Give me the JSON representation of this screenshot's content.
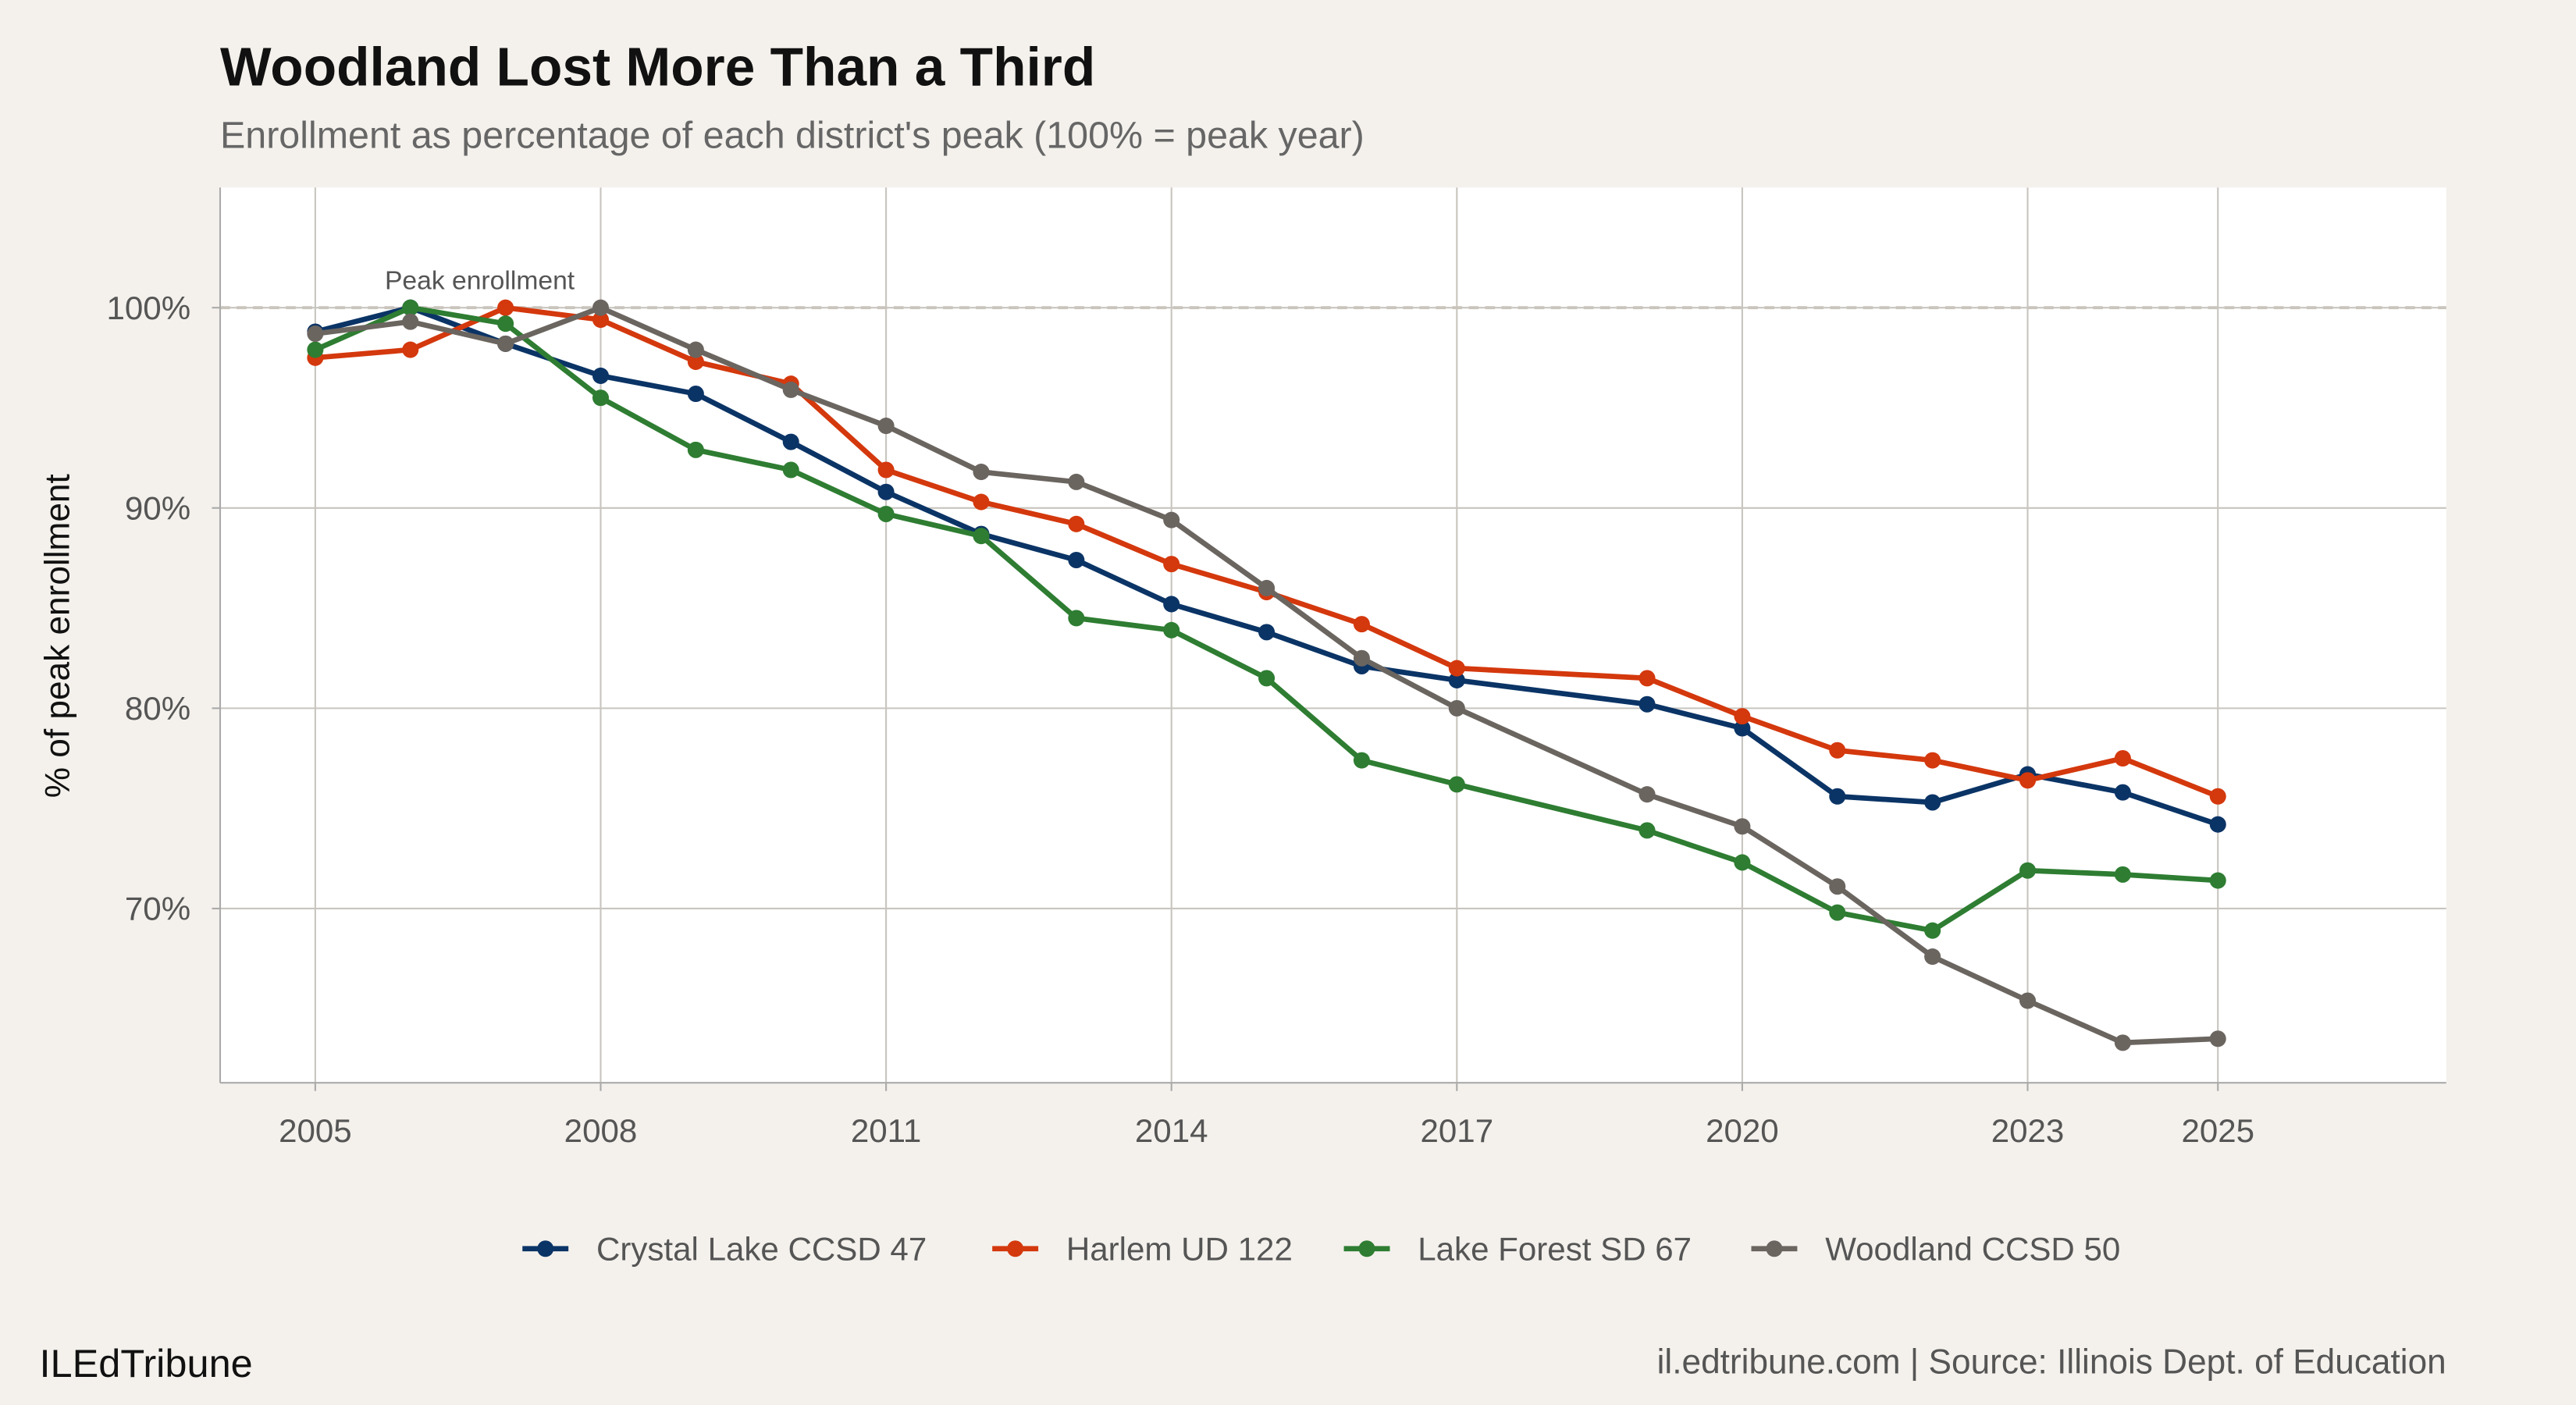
{
  "chart_data": {
    "type": "line",
    "title": "Woodland Lost More Than a Third",
    "subtitle": "Enrollment as percentage of each district's peak (100% = peak year)",
    "xlabel": "",
    "ylabel": "% of peak enrollment",
    "xlim": [
      2004,
      2027.4
    ],
    "ylim": [
      61.3,
      106
    ],
    "x_ticks": [
      2005,
      2008,
      2011,
      2014,
      2017,
      2020,
      2023,
      2025
    ],
    "x_tick_labels": [
      "2005",
      "2008",
      "2011",
      "2014",
      "2017",
      "2020",
      "2023",
      "2025"
    ],
    "y_ticks": [
      70,
      80,
      90,
      100
    ],
    "y_tick_labels": [
      "70%",
      "80%",
      "90%",
      "100%"
    ],
    "grid": true,
    "legend_position": "bottom",
    "reference_line": {
      "y": 100,
      "style": "dashed",
      "label": "Peak enrollment"
    },
    "x": [
      2005,
      2006,
      2007,
      2008,
      2009,
      2010,
      2011,
      2012,
      2013,
      2014,
      2015,
      2016,
      2017,
      2019,
      2020,
      2021,
      2022,
      2023,
      2024,
      2025
    ],
    "series": [
      {
        "name": "Crystal Lake CCSD 47",
        "color": "#0b3466",
        "values": [
          98.8,
          100,
          98.2,
          96.6,
          95.7,
          93.3,
          90.8,
          88.7,
          87.4,
          85.2,
          83.8,
          82.1,
          81.4,
          80.2,
          79.0,
          75.6,
          75.3,
          76.7,
          75.8,
          74.2
        ]
      },
      {
        "name": "Harlem UD 122",
        "color": "#d4380d",
        "values": [
          97.5,
          97.9,
          100,
          99.4,
          97.3,
          96.2,
          91.9,
          90.3,
          89.2,
          87.2,
          85.8,
          84.2,
          82.0,
          81.5,
          79.6,
          77.9,
          77.4,
          76.4,
          77.5,
          75.6
        ]
      },
      {
        "name": "Lake Forest SD 67",
        "color": "#2e7d32",
        "values": [
          97.9,
          100,
          99.2,
          95.5,
          92.9,
          91.9,
          89.7,
          88.6,
          84.5,
          83.9,
          81.5,
          77.4,
          76.2,
          73.9,
          72.3,
          69.8,
          68.9,
          71.9,
          71.7,
          71.4
        ]
      },
      {
        "name": "Woodland CCSD 50",
        "color": "#6b6560",
        "values": [
          98.7,
          99.3,
          98.2,
          100,
          97.9,
          95.9,
          94.1,
          91.8,
          91.3,
          89.4,
          86.0,
          82.5,
          80.0,
          75.7,
          74.1,
          71.1,
          67.6,
          65.4,
          63.3,
          63.5
        ]
      }
    ]
  },
  "footer": {
    "brand": "ILEdTribune",
    "caption": "il.edtribune.com | Source: Illinois Dept. of Education"
  },
  "colors": {
    "background": "#f4f1ec",
    "panel": "#ffffff",
    "grid": "#c8c5bf"
  }
}
